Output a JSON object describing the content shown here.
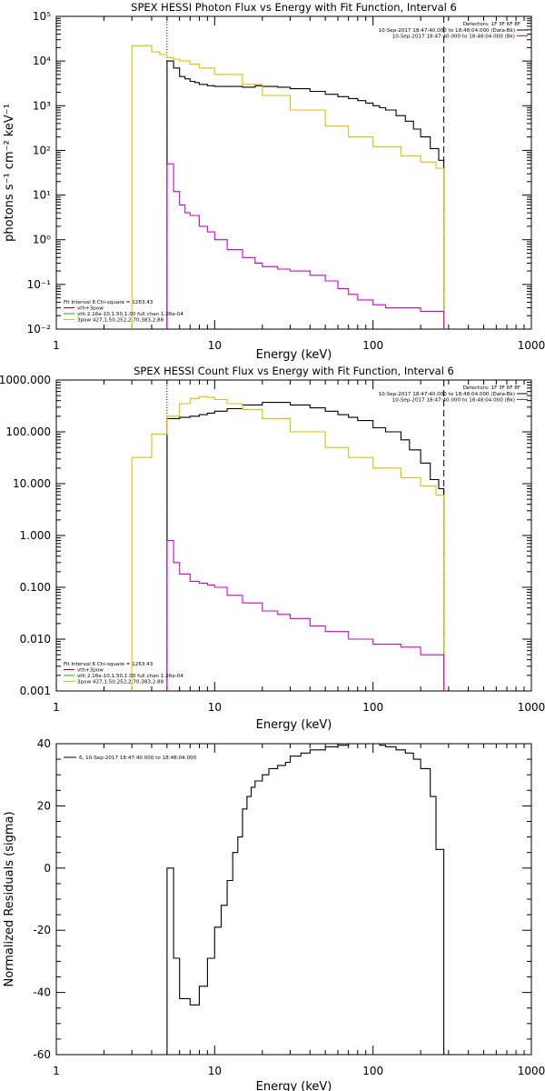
{
  "chart_data": [
    {
      "type": "line",
      "title": "SPEX HESSI Photon Flux vs Energy with Fit Function, Interval 6",
      "xlabel": "Energy (keV)",
      "ylabel": "photons s⁻¹ cm⁻² keV⁻¹",
      "xscale": "log",
      "yscale": "log",
      "xlim": [
        1,
        1000
      ],
      "ylim": [
        0.01,
        100000
      ],
      "x_ticks": [
        "1",
        "10",
        "100",
        "1000"
      ],
      "y_ticks": [
        "10⁻²",
        "10⁻¹",
        "10⁰",
        "10¹",
        "10²",
        "10³",
        "10⁴",
        "10⁵"
      ],
      "vlines": {
        "dotted": 5,
        "dashed": 280
      },
      "legend_right": {
        "detectors": "Detectors: 1F 3F 6F 8F",
        "entries": [
          {
            "label": "10-Sep-2017 18:47:40.000 to 18:48:04.000 (Data-Bk)",
            "color": "#000000"
          },
          {
            "label": "10-Sep-2017 18:47:40.000 to 18:48:04.000 (Bk)",
            "color": "#d400d4"
          }
        ]
      },
      "legend_left": {
        "header": "Fit Interval 6   Chi-square = 1263.43",
        "entries": [
          {
            "label": "vth+3pow",
            "color": "#d40000"
          },
          {
            "label": "vth 2.16e-10,1.50,1.00  full chan 1.26e-04",
            "color": "#00c000"
          },
          {
            "label": "3pow 427,1.50,252,2.70,383,2.88",
            "color": "#e0c000"
          }
        ]
      },
      "series": [
        {
          "name": "Data-Bk",
          "color": "#000000",
          "x": [
            5.0,
            5.5,
            6.0,
            6.5,
            7.0,
            7.5,
            8.0,
            9.0,
            10.0,
            12.0,
            15.0,
            18.0,
            20.0,
            25.0,
            30.0,
            40.0,
            50.0,
            60.0,
            70.0,
            80.0,
            90.0,
            100.0,
            110.0,
            120.0,
            140.0,
            160.0,
            180.0,
            200.0,
            230.0,
            260.0,
            280.0
          ],
          "y": [
            10000,
            7000,
            4500,
            4000,
            3500,
            3300,
            3000,
            2800,
            2700,
            2700,
            2600,
            2800,
            2700,
            2600,
            2400,
            2100,
            1800,
            1600,
            1450,
            1300,
            1150,
            1000,
            900,
            800,
            600,
            450,
            300,
            200,
            110,
            60,
            30
          ]
        },
        {
          "name": "3pow fit",
          "color": "#e0c000",
          "x": [
            3.0,
            3.5,
            4.0,
            4.5,
            5.0,
            5.5,
            6.0,
            7.0,
            8.0,
            10.0,
            15.0,
            20.0,
            30.0,
            50.0,
            70.0,
            100.0,
            150.0,
            200.0,
            250.0,
            280.0
          ],
          "y": [
            22000,
            22000,
            16000,
            14000,
            12000,
            11000,
            10000,
            8500,
            7000,
            5000,
            3000,
            1700,
            800,
            350,
            200,
            120,
            75,
            55,
            40,
            35
          ]
        },
        {
          "name": "Bk",
          "color": "#d400d4",
          "x": [
            5.0,
            5.5,
            6.0,
            6.5,
            7.0,
            8.0,
            9.0,
            10.0,
            12.0,
            15.0,
            18.0,
            20.0,
            25.0,
            30.0,
            40.0,
            50.0,
            60.0,
            70.0,
            80.0,
            100.0,
            120.0,
            150.0,
            200.0,
            280.0
          ],
          "y": [
            50,
            12,
            6,
            4,
            3.5,
            2,
            1.5,
            1.0,
            0.6,
            0.4,
            0.3,
            0.25,
            0.22,
            0.2,
            0.16,
            0.12,
            0.08,
            0.06,
            0.045,
            0.035,
            0.03,
            0.03,
            0.025,
            0.02
          ]
        }
      ]
    },
    {
      "type": "line",
      "title": "SPEX HESSI Count Flux vs Energy with Fit Function, Interval 6",
      "xlabel": "Energy (keV)",
      "ylabel": "",
      "xscale": "log",
      "yscale": "log",
      "xlim": [
        1,
        1000
      ],
      "ylim": [
        0.001,
        1000
      ],
      "x_ticks": [
        "1",
        "10",
        "100",
        "1000"
      ],
      "y_ticks": [
        "0.001",
        "0.010",
        "0.100",
        "1.000",
        "10.000",
        "100.000",
        "1000.000"
      ],
      "vlines": {
        "dotted": 5,
        "dashed": 280
      },
      "legend_right": {
        "detectors": "Detectors: 1F 3F 6F 8F",
        "entries": [
          {
            "label": "10-Sep-2017 18:47:40.000 to 18:48:04.000 (Data-Bk)",
            "color": "#000000"
          },
          {
            "label": "10-Sep-2017 18:47:40.000 to 18:48:04.000 (Bk)",
            "color": "#d400d4"
          }
        ]
      },
      "legend_left": {
        "header": "Fit Interval 6   Chi-square = 1263.43",
        "entries": [
          {
            "label": "vth+3pow",
            "color": "#d40000"
          },
          {
            "label": "vth 2.16e-10,1.50,1.00  full chan 1.26e-04",
            "color": "#00c000"
          },
          {
            "label": "3pow 427,1.50,252,2.70,383,2.88",
            "color": "#e0c000"
          }
        ]
      },
      "series": [
        {
          "name": "Data-Bk",
          "color": "#000000",
          "x": [
            5.0,
            6.0,
            7.0,
            8.0,
            9.0,
            10.0,
            12.0,
            15.0,
            20.0,
            30.0,
            40.0,
            50.0,
            60.0,
            70.0,
            80.0,
            100.0,
            120.0,
            150.0,
            170.0,
            200.0,
            230.0,
            260.0,
            280.0
          ],
          "y": [
            180,
            190,
            200,
            215,
            230,
            250,
            280,
            330,
            370,
            330,
            290,
            250,
            215,
            190,
            165,
            120,
            100,
            70,
            45,
            25,
            12,
            8,
            5
          ]
        },
        {
          "name": "3pow fit",
          "color": "#e0c000",
          "x": [
            3.0,
            4.0,
            5.0,
            6.0,
            7.0,
            8.0,
            9.0,
            10.0,
            12.0,
            15.0,
            20.0,
            30.0,
            50.0,
            70.0,
            100.0,
            150.0,
            200.0,
            250.0,
            280.0
          ],
          "y": [
            32,
            90,
            200,
            350,
            440,
            480,
            460,
            420,
            350,
            270,
            180,
            100,
            50,
            32,
            20,
            13,
            9,
            6,
            4
          ]
        },
        {
          "name": "Bk",
          "color": "#d400d4",
          "x": [
            5.0,
            5.5,
            6.0,
            7.0,
            8.0,
            9.0,
            10.0,
            12.0,
            15.0,
            20.0,
            25.0,
            30.0,
            40.0,
            50.0,
            70.0,
            100.0,
            150.0,
            200.0,
            280.0
          ],
          "y": [
            0.8,
            0.3,
            0.18,
            0.13,
            0.12,
            0.11,
            0.1,
            0.07,
            0.05,
            0.035,
            0.03,
            0.025,
            0.018,
            0.014,
            0.01,
            0.008,
            0.007,
            0.005,
            0.003
          ]
        }
      ]
    },
    {
      "type": "line",
      "title": "",
      "xlabel": "Energy (keV)",
      "ylabel": "Normalized Residuals (sigma)",
      "xscale": "log",
      "yscale": "linear",
      "xlim": [
        1,
        1000
      ],
      "ylim": [
        -60,
        40
      ],
      "x_ticks": [
        "1",
        "10",
        "100",
        "1000"
      ],
      "y_ticks": [
        "-60",
        "-40",
        "-20",
        "0",
        "20",
        "40"
      ],
      "legend_left": {
        "header": "",
        "entries": [
          {
            "label": "6, 10-Sep-2017 18:47:40.000 to 18:48:04.000",
            "color": "#000000"
          }
        ]
      },
      "series": [
        {
          "name": "6, 10-Sep-2017 18:47:40.000 to 18:48:04.000",
          "color": "#000000",
          "x": [
            5.0,
            5.5,
            6.0,
            7.0,
            8.0,
            9.0,
            10.0,
            11.0,
            12.0,
            13.0,
            14.0,
            15.0,
            16.0,
            17.0,
            18.0,
            20.0,
            22.0,
            25.0,
            28.0,
            30.0,
            35.0,
            40.0,
            50.0,
            60.0,
            70.0,
            80.0,
            90.0,
            100.0,
            110.0,
            120.0,
            140.0,
            160.0,
            180.0,
            200.0,
            230.0,
            250.0,
            280.0
          ],
          "y": [
            0,
            -29,
            -42,
            -44,
            -38,
            -29,
            -19,
            -12,
            -4,
            5,
            10,
            19,
            23,
            26,
            28,
            30,
            32,
            33,
            34,
            36,
            37,
            38,
            39,
            39.5,
            40,
            40,
            40,
            40,
            39.5,
            39,
            38,
            37,
            35,
            32,
            23,
            6,
            -60
          ]
        }
      ]
    }
  ]
}
